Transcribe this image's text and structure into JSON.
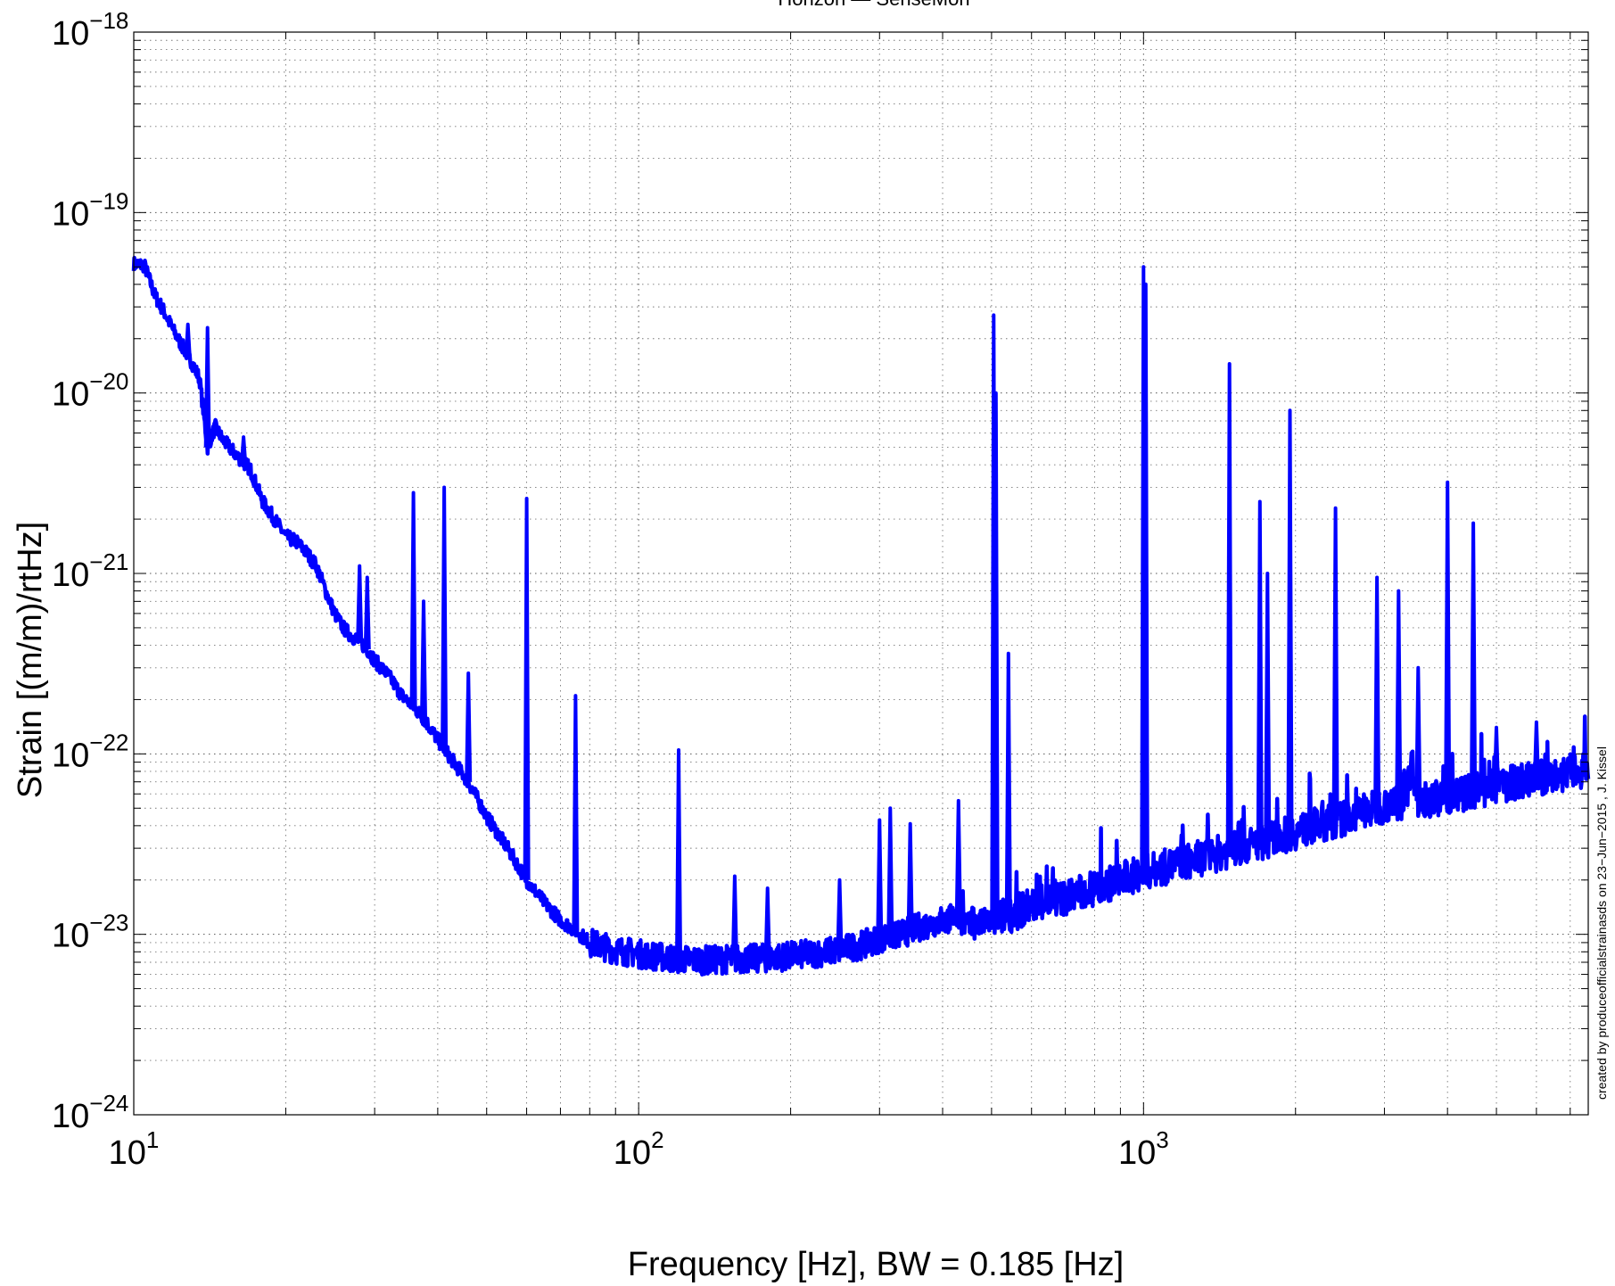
{
  "chart_data": {
    "type": "line",
    "title": "Horizon  —  SenseMon",
    "xlabel": "Frequency [Hz], BW = 0.185 [Hz]",
    "ylabel": "Strain [(m/m)/rtHz]",
    "credit": "created by produceofficialstrainasds on 23−Jun−2015 , J. Kissel",
    "xscale": "log",
    "yscale": "log",
    "xlim": [
      10,
      7600
    ],
    "ylim": [
      1e-24,
      1e-18
    ],
    "grid": true,
    "x_ticks": [
      {
        "value": 10,
        "base": "10",
        "exp": "1"
      },
      {
        "value": 100,
        "base": "10",
        "exp": "2"
      },
      {
        "value": 1000,
        "base": "10",
        "exp": "3"
      }
    ],
    "y_ticks": [
      {
        "value": 1e-18,
        "base": "10",
        "exp": "−18"
      },
      {
        "value": 1e-19,
        "base": "10",
        "exp": "−19"
      },
      {
        "value": 1e-20,
        "base": "10",
        "exp": "−20"
      },
      {
        "value": 1e-21,
        "base": "10",
        "exp": "−21"
      },
      {
        "value": 1e-22,
        "base": "10",
        "exp": "−22"
      },
      {
        "value": 1e-23,
        "base": "10",
        "exp": "−23"
      },
      {
        "value": 1e-24,
        "base": "10",
        "exp": "−24"
      }
    ],
    "series": [
      {
        "color": "#0000ff",
        "x": [
          10,
          10.5,
          11,
          11.5,
          12,
          12.5,
          13,
          13.5,
          14,
          14.5,
          15,
          16,
          17,
          18,
          19,
          20,
          21,
          22,
          23,
          24,
          25,
          26,
          27,
          28,
          29,
          30,
          32,
          34,
          36,
          38,
          40,
          43,
          46,
          50,
          55,
          60,
          65,
          70,
          75,
          80,
          90,
          100,
          110,
          120,
          130,
          140,
          150,
          160,
          180,
          200,
          220,
          250,
          280,
          300,
          330,
          360,
          400,
          430,
          450,
          480,
          500,
          520,
          550,
          600,
          700,
          800,
          900,
          1000,
          1100,
          1200,
          1400,
          1600,
          1800,
          2000,
          2200,
          2500,
          2800,
          3000,
          3300,
          3400,
          3500,
          4000,
          4500,
          5000,
          5500,
          6000,
          6500,
          7000,
          7600
        ],
        "y": [
          5.2e-20,
          5.1e-20,
          3.5e-20,
          2.8e-20,
          2.2e-20,
          1.8e-20,
          1.5e-20,
          1.2e-20,
          5e-21,
          6.5e-21,
          5.5e-21,
          4.5e-21,
          3.8e-21,
          2.5e-21,
          2e-21,
          1.6e-21,
          1.5e-21,
          1.3e-21,
          1.1e-21,
          8e-22,
          6e-22,
          5e-22,
          4.5e-22,
          4.2e-22,
          3.8e-22,
          3.3e-22,
          2.7e-22,
          2.1e-22,
          1.8e-22,
          1.5e-22,
          1.2e-22,
          9e-23,
          7e-23,
          4.5e-23,
          3e-23,
          2e-23,
          1.5e-23,
          1.2e-23,
          1.05e-23,
          9e-24,
          8.2e-24,
          7.8e-24,
          7.5e-24,
          7.3e-24,
          7.2e-24,
          7.2e-24,
          7.3e-24,
          7.3e-24,
          7.4e-24,
          7.6e-24,
          7.8e-24,
          8.2e-24,
          8.8e-24,
          9.5e-24,
          1e-23,
          1.1e-23,
          1.2e-23,
          1.25e-23,
          1.1e-23,
          1.15e-23,
          1.2e-23,
          1.25e-23,
          1.3e-23,
          1.45e-23,
          1.6e-23,
          1.8e-23,
          2e-23,
          2.2e-23,
          2.35e-23,
          2.5e-23,
          2.8e-23,
          3.1e-23,
          3.4e-23,
          3.7e-23,
          4e-23,
          4.4e-23,
          4.9e-23,
          5.2e-23,
          5.5e-23,
          9e-23,
          5.5e-23,
          5.8e-23,
          6.2e-23,
          6.6e-23,
          7e-23,
          7.3e-23,
          7.6e-23,
          7.9e-23,
          8.2e-23
        ]
      }
    ],
    "peaks": [
      {
        "f": 14.0,
        "h": 2.3e-20
      },
      {
        "f": 12.8,
        "h": 2.4e-20
      },
      {
        "f": 16.5,
        "h": 5.7e-21
      },
      {
        "f": 28.0,
        "h": 1.1e-21
      },
      {
        "f": 29.0,
        "h": 9.5e-22
      },
      {
        "f": 35.8,
        "h": 2.8e-21
      },
      {
        "f": 37.5,
        "h": 7e-22
      },
      {
        "f": 41.2,
        "h": 3e-21
      },
      {
        "f": 46.0,
        "h": 2.8e-22
      },
      {
        "f": 60.0,
        "h": 2.6e-21
      },
      {
        "f": 75.0,
        "h": 2.1e-22
      },
      {
        "f": 120.0,
        "h": 1.05e-22
      },
      {
        "f": 155.0,
        "h": 2.1e-23
      },
      {
        "f": 180.0,
        "h": 1.8e-23
      },
      {
        "f": 250.0,
        "h": 2e-23
      },
      {
        "f": 300.0,
        "h": 4.3e-23
      },
      {
        "f": 315.0,
        "h": 5e-23
      },
      {
        "f": 345.0,
        "h": 4.1e-23
      },
      {
        "f": 430.0,
        "h": 5.5e-23
      },
      {
        "f": 505.0,
        "h": 2.7e-20
      },
      {
        "f": 510.0,
        "h": 1e-20
      },
      {
        "f": 540.0,
        "h": 3.6e-22
      },
      {
        "f": 1000.0,
        "h": 5e-20
      },
      {
        "f": 1010.0,
        "h": 4e-20
      },
      {
        "f": 1480.0,
        "h": 1.45e-20
      },
      {
        "f": 1700.0,
        "h": 2.5e-21
      },
      {
        "f": 1760.0,
        "h": 1e-21
      },
      {
        "f": 1950.0,
        "h": 8e-21
      },
      {
        "f": 2400.0,
        "h": 2.3e-21
      },
      {
        "f": 2900.0,
        "h": 9.5e-22
      },
      {
        "f": 3200.0,
        "h": 8e-22
      },
      {
        "f": 3500.0,
        "h": 3e-22
      },
      {
        "f": 4000.0,
        "h": 3.2e-21
      },
      {
        "f": 4500.0,
        "h": 1.9e-21
      },
      {
        "f": 5000.0,
        "h": 1.4e-22
      },
      {
        "f": 6000.0,
        "h": 1.5e-22
      }
    ]
  }
}
